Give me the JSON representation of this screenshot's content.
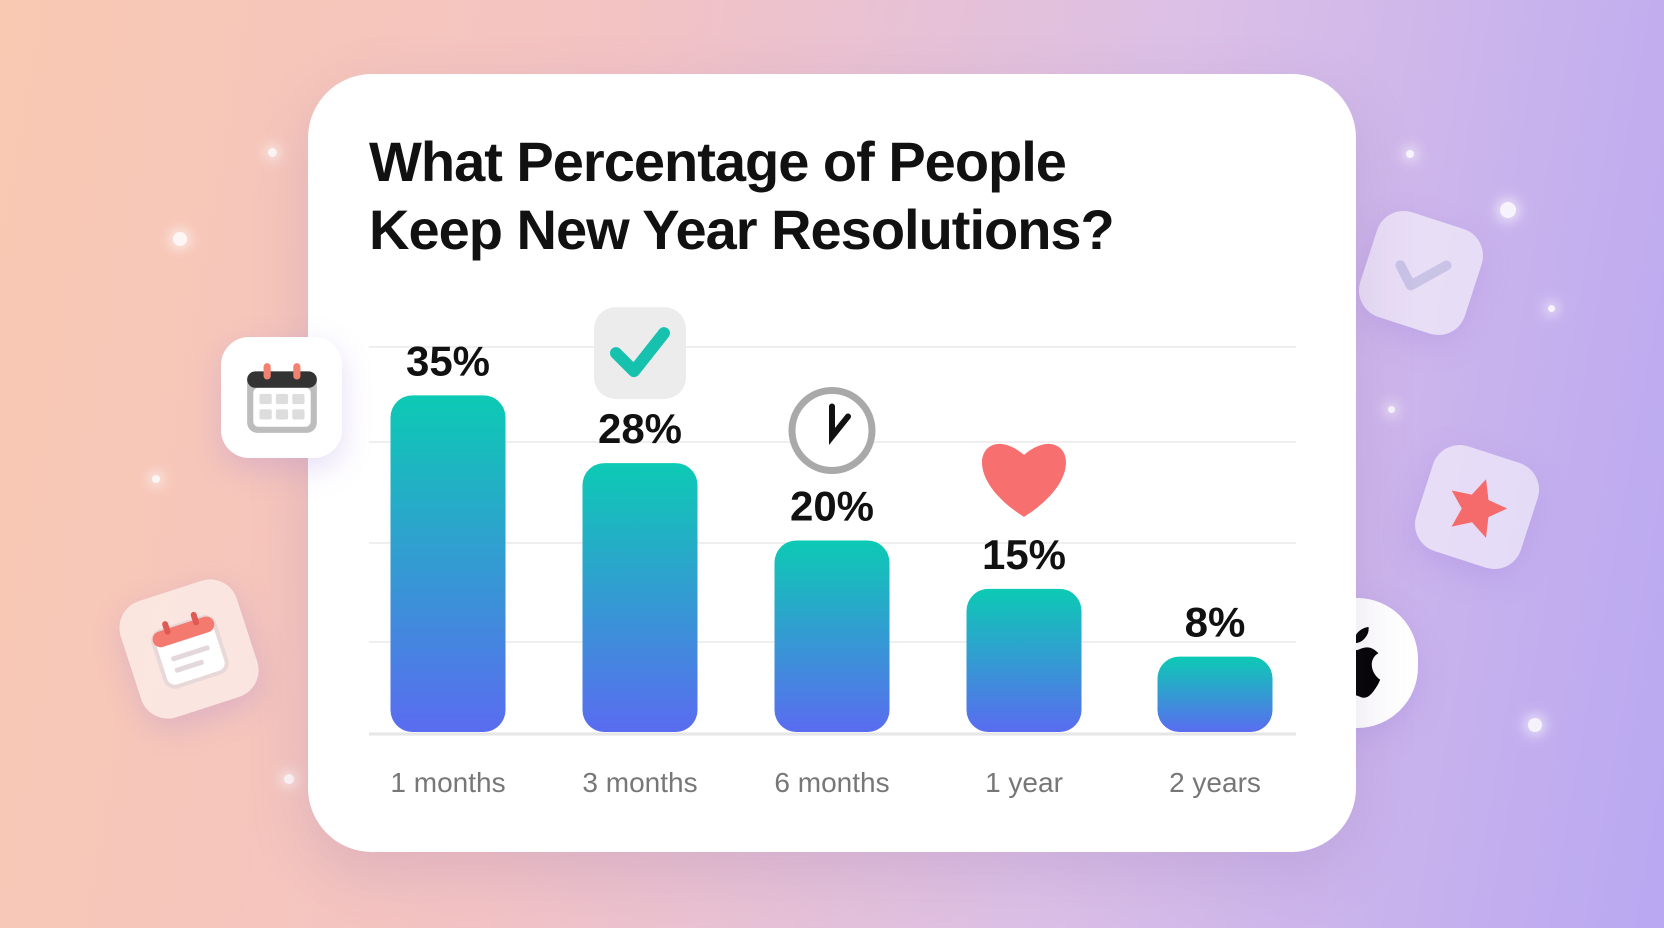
{
  "chart_data": {
    "type": "bar",
    "title": "What Percentage of People Keep New Year Resolutions?",
    "categories": [
      "1 months",
      "3 months",
      "6 months",
      "1 year",
      "2 years"
    ],
    "values": [
      35,
      28,
      20,
      15,
      8
    ],
    "value_labels": [
      "35%",
      "28%",
      "20%",
      "15%",
      "8%"
    ],
    "ylim": [
      0,
      40
    ],
    "grid": true,
    "colors": {
      "bar_top": "#0ccab4",
      "bar_bottom": "#5a6cf0"
    },
    "bar_icons": [
      null,
      "checkmark-icon",
      "clock-icon",
      "heart-icon",
      null
    ]
  },
  "decorations": [
    "calendar-icon",
    "calendar-note-icon",
    "checkmark-tile-icon",
    "star-icon",
    "apple-icon"
  ]
}
